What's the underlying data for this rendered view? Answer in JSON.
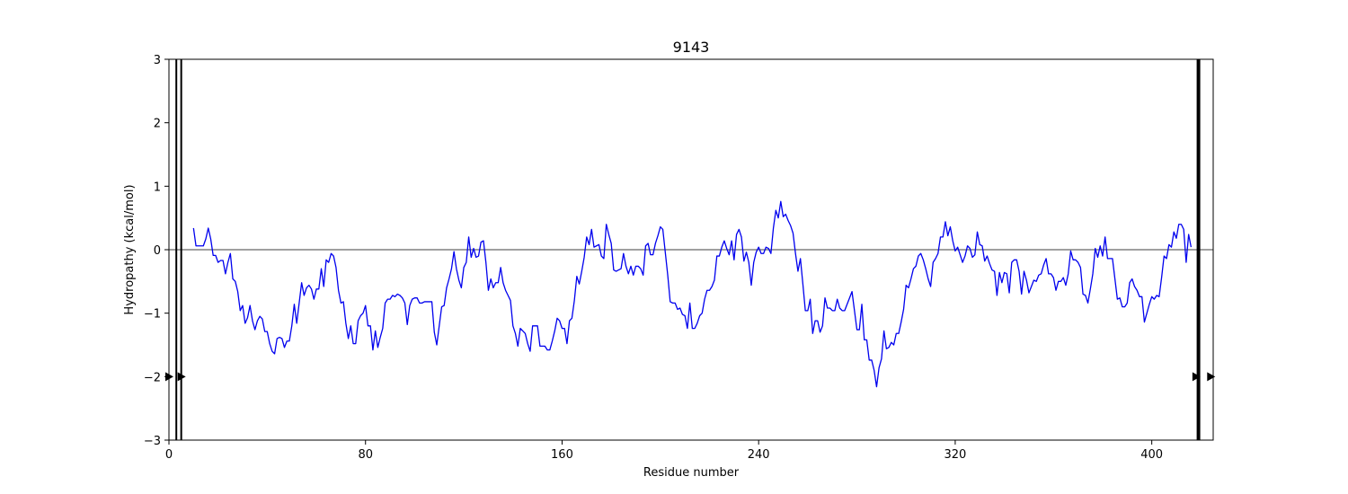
{
  "chart_data": {
    "type": "line",
    "title": "9143",
    "xlabel": "Residue number",
    "ylabel": "Hydropathy (kcal/mol)",
    "xlim": [
      0,
      425
    ],
    "ylim": [
      -3,
      3
    ],
    "xticks": [
      0,
      80,
      160,
      240,
      320,
      400
    ],
    "yticks": [
      -3,
      -2,
      -1,
      0,
      1,
      2,
      3
    ],
    "reference_line_y": 0,
    "line_color": "#0000ee",
    "marker_color": "#000000",
    "series": [
      {
        "name": "hydropathy",
        "x": [
          10,
          11,
          12,
          13,
          14,
          15,
          16,
          17,
          18,
          19,
          20,
          21,
          22,
          23,
          24,
          25,
          26,
          27,
          28,
          29,
          30,
          31,
          32,
          33,
          34,
          35,
          36,
          37,
          38,
          39,
          40,
          41,
          42,
          43,
          44,
          45,
          46,
          47,
          48,
          49,
          50,
          51,
          52,
          53,
          54,
          55,
          56,
          57,
          58,
          59,
          60,
          61,
          62,
          63,
          64,
          65,
          66,
          67,
          68,
          69,
          70,
          71,
          72,
          73,
          74,
          75,
          76,
          77,
          78,
          79,
          80,
          81,
          82,
          83,
          84,
          85,
          86,
          87,
          88,
          89,
          90,
          91,
          92,
          93,
          94,
          95,
          96,
          97,
          98,
          99,
          100,
          101,
          102,
          103,
          104,
          105,
          106,
          107,
          108,
          109,
          110,
          111,
          112,
          113,
          114,
          115,
          116,
          117,
          118,
          119,
          120,
          121,
          122,
          123,
          124,
          125,
          126,
          127,
          128,
          129,
          130,
          131,
          132,
          133,
          134,
          135,
          136,
          137,
          138,
          139,
          140,
          141,
          142,
          143,
          144,
          145,
          146,
          147,
          148,
          149,
          150,
          151,
          152,
          153,
          154,
          155,
          156,
          157,
          158,
          159,
          160,
          161,
          162,
          163,
          164,
          165,
          166,
          167,
          168,
          169,
          170,
          171,
          172,
          173,
          174,
          175,
          176,
          177,
          178,
          179,
          180,
          181,
          182,
          183,
          184,
          185,
          186,
          187,
          188,
          189,
          190,
          191,
          192,
          193,
          194,
          195,
          196,
          197,
          198,
          199,
          200,
          201,
          202,
          203,
          204,
          205,
          206,
          207,
          208,
          209,
          210,
          211,
          212,
          213,
          214,
          215,
          216,
          217,
          218,
          219,
          220,
          221,
          222,
          223,
          224,
          225,
          226,
          227,
          228,
          229,
          230,
          231,
          232,
          233,
          234,
          235,
          236,
          237,
          238,
          239,
          240,
          241,
          242,
          243,
          244,
          245,
          246,
          247,
          248,
          249,
          250,
          251,
          252,
          253,
          254,
          255,
          256,
          257,
          258,
          259,
          260,
          261,
          262,
          263,
          264,
          265,
          266,
          267,
          268,
          269,
          270,
          271,
          272,
          273,
          274,
          275,
          276,
          277,
          278,
          279,
          280,
          281,
          282,
          283,
          284,
          285,
          286,
          287,
          288,
          289,
          290,
          291,
          292,
          293,
          294,
          295,
          296,
          297,
          298,
          299,
          300,
          301,
          302,
          303,
          304,
          305,
          306,
          307,
          308,
          309,
          310,
          311,
          312,
          313,
          314,
          315,
          316,
          317,
          318,
          319,
          320,
          321,
          322,
          323,
          324,
          325,
          326,
          327,
          328,
          329,
          330,
          331,
          332,
          333,
          334,
          335,
          336,
          337,
          338,
          339,
          340,
          341,
          342,
          343,
          344,
          345,
          346,
          347,
          348,
          349,
          350,
          351,
          352,
          353,
          354,
          355,
          356,
          357,
          358,
          359,
          360,
          361,
          362,
          363,
          364,
          365,
          366,
          367,
          368,
          369,
          370,
          371,
          372,
          373,
          374,
          375,
          376,
          377,
          378,
          379,
          380,
          381,
          382,
          383,
          384,
          385,
          386,
          387,
          388,
          389,
          390,
          391,
          392,
          393,
          394,
          395,
          396,
          397,
          398,
          399,
          400,
          401,
          402,
          403,
          404,
          405,
          406,
          407,
          408,
          409,
          410,
          411,
          412,
          413,
          414,
          415,
          416
        ],
        "y": [
          0.34,
          0.06,
          0.06,
          0.06,
          0.06,
          0.17,
          0.34,
          0.17,
          -0.09,
          -0.09,
          -0.2,
          -0.17,
          -0.17,
          -0.38,
          -0.2,
          -0.06,
          -0.46,
          -0.5,
          -0.66,
          -0.96,
          -0.88,
          -1.16,
          -1.07,
          -0.88,
          -1.12,
          -1.26,
          -1.12,
          -1.05,
          -1.09,
          -1.29,
          -1.29,
          -1.48,
          -1.6,
          -1.64,
          -1.4,
          -1.38,
          -1.4,
          -1.54,
          -1.44,
          -1.44,
          -1.2,
          -0.86,
          -1.16,
          -0.84,
          -0.52,
          -0.72,
          -0.6,
          -0.56,
          -0.62,
          -0.78,
          -0.62,
          -0.62,
          -0.3,
          -0.58,
          -0.16,
          -0.2,
          -0.06,
          -0.1,
          -0.28,
          -0.64,
          -0.84,
          -0.82,
          -1.16,
          -1.4,
          -1.2,
          -1.48,
          -1.48,
          -1.12,
          -1.04,
          -1.0,
          -0.88,
          -1.2,
          -1.2,
          -1.58,
          -1.28,
          -1.54,
          -1.38,
          -1.24,
          -0.84,
          -0.78,
          -0.78,
          -0.72,
          -0.74,
          -0.7,
          -0.72,
          -0.76,
          -0.84,
          -1.18,
          -0.88,
          -0.78,
          -0.76,
          -0.76,
          -0.84,
          -0.84,
          -0.82,
          -0.82,
          -0.82,
          -0.82,
          -1.3,
          -1.5,
          -1.2,
          -0.9,
          -0.88,
          -0.6,
          -0.46,
          -0.3,
          -0.03,
          -0.3,
          -0.48,
          -0.6,
          -0.28,
          -0.2,
          0.2,
          -0.12,
          0.02,
          -0.12,
          -0.1,
          0.12,
          0.14,
          -0.2,
          -0.64,
          -0.46,
          -0.6,
          -0.52,
          -0.52,
          -0.28,
          -0.52,
          -0.64,
          -0.72,
          -0.8,
          -1.2,
          -1.32,
          -1.52,
          -1.24,
          -1.28,
          -1.32,
          -1.48,
          -1.6,
          -1.2,
          -1.2,
          -1.2,
          -1.52,
          -1.52,
          -1.52,
          -1.58,
          -1.58,
          -1.44,
          -1.28,
          -1.08,
          -1.12,
          -1.24,
          -1.24,
          -1.48,
          -1.12,
          -1.08,
          -0.8,
          -0.42,
          -0.54,
          -0.34,
          -0.12,
          0.2,
          0.08,
          0.32,
          0.04,
          0.06,
          0.08,
          -0.1,
          -0.14,
          0.4,
          0.24,
          0.1,
          -0.32,
          -0.34,
          -0.32,
          -0.3,
          -0.06,
          -0.26,
          -0.38,
          -0.26,
          -0.4,
          -0.26,
          -0.26,
          -0.3,
          -0.4,
          0.06,
          0.1,
          -0.08,
          -0.08,
          0.1,
          0.22,
          0.36,
          0.32,
          -0.04,
          -0.4,
          -0.82,
          -0.84,
          -0.84,
          -0.94,
          -0.92,
          -1.02,
          -1.04,
          -1.24,
          -0.84,
          -1.24,
          -1.24,
          -1.16,
          -1.04,
          -1.0,
          -0.78,
          -0.64,
          -0.64,
          -0.58,
          -0.48,
          -0.1,
          -0.1,
          0.04,
          0.14,
          0.02,
          -0.08,
          0.14,
          -0.16,
          0.24,
          0.32,
          0.2,
          -0.18,
          -0.04,
          -0.2,
          -0.56,
          -0.2,
          -0.04,
          0.04,
          -0.06,
          -0.06,
          0.04,
          0.02,
          -0.06,
          0.34,
          0.62,
          0.5,
          0.76,
          0.52,
          0.56,
          0.46,
          0.38,
          0.26,
          -0.06,
          -0.34,
          -0.14,
          -0.54,
          -0.96,
          -0.96,
          -0.78,
          -1.32,
          -1.12,
          -1.12,
          -1.3,
          -1.2,
          -0.76,
          -0.92,
          -0.92,
          -0.96,
          -0.96,
          -0.78,
          -0.92,
          -0.96,
          -0.96,
          -0.86,
          -0.76,
          -0.66,
          -0.96,
          -1.26,
          -1.26,
          -0.86,
          -1.42,
          -1.42,
          -1.74,
          -1.74,
          -1.9,
          -2.16,
          -1.86,
          -1.72,
          -1.28,
          -1.56,
          -1.54,
          -1.46,
          -1.5,
          -1.32,
          -1.32,
          -1.14,
          -0.94,
          -0.56,
          -0.6,
          -0.46,
          -0.3,
          -0.26,
          -0.1,
          -0.06,
          -0.16,
          -0.3,
          -0.46,
          -0.58,
          -0.2,
          -0.14,
          -0.06,
          0.2,
          0.2,
          0.44,
          0.22,
          0.36,
          0.14,
          -0.02,
          0.04,
          -0.08,
          -0.2,
          -0.1,
          0.06,
          0.02,
          -0.12,
          -0.08,
          0.28,
          0.08,
          0.06,
          -0.18,
          -0.1,
          -0.22,
          -0.32,
          -0.34,
          -0.72,
          -0.36,
          -0.52,
          -0.36,
          -0.38,
          -0.68,
          -0.2,
          -0.16,
          -0.16,
          -0.34,
          -0.7,
          -0.34,
          -0.48,
          -0.68,
          -0.58,
          -0.48,
          -0.5,
          -0.4,
          -0.38,
          -0.24,
          -0.14,
          -0.38,
          -0.38,
          -0.44,
          -0.64,
          -0.5,
          -0.5,
          -0.44,
          -0.56,
          -0.38,
          -0.02,
          -0.16,
          -0.16,
          -0.2,
          -0.28,
          -0.7,
          -0.72,
          -0.84,
          -0.62,
          -0.38,
          0.02,
          -0.12,
          0.06,
          -0.1,
          0.2,
          -0.14,
          -0.14,
          -0.14,
          -0.46,
          -0.78,
          -0.76,
          -0.9,
          -0.9,
          -0.84,
          -0.52,
          -0.46,
          -0.58,
          -0.64,
          -0.74,
          -0.74,
          -1.14,
          -1.0,
          -0.86,
          -0.74,
          -0.78,
          -0.72,
          -0.74,
          -0.44,
          -0.1,
          -0.14,
          0.08,
          0.04,
          0.28,
          0.18,
          0.4,
          0.4,
          0.32,
          -0.2,
          0.24,
          0.04
        ]
      }
    ],
    "markers": [
      {
        "x": 0,
        "y": -2
      },
      {
        "x": 5,
        "y": -2
      },
      {
        "x": 418,
        "y": -2
      },
      {
        "x": 424,
        "y": -2
      }
    ],
    "vertical_lines": [
      {
        "x": 3,
        "weight": "thin"
      },
      {
        "x": 5,
        "weight": "thin"
      },
      {
        "x": 419,
        "weight": "thick"
      }
    ]
  }
}
